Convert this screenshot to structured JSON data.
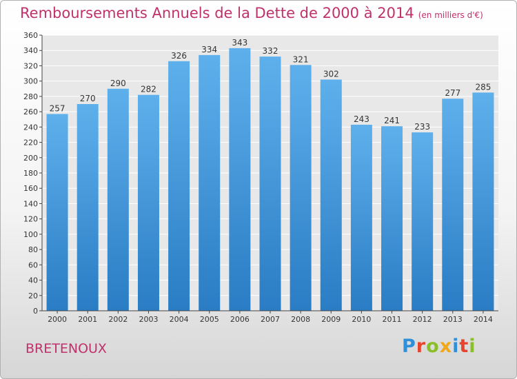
{
  "chart_data": {
    "type": "bar",
    "title": "Remboursements Annuels de la Dette de 2000 à 2014",
    "unit": "(en milliers d'€)",
    "categories": [
      "2000",
      "2001",
      "2002",
      "2003",
      "2004",
      "2005",
      "2006",
      "2007",
      "2008",
      "2009",
      "2010",
      "2011",
      "2012",
      "2013",
      "2014"
    ],
    "values": [
      257,
      270,
      290,
      282,
      326,
      334,
      343,
      332,
      321,
      302,
      243,
      241,
      233,
      277,
      285
    ],
    "ylim": [
      0,
      360
    ],
    "yticks": [
      0,
      20,
      40,
      60,
      80,
      100,
      120,
      140,
      160,
      180,
      200,
      220,
      240,
      260,
      280,
      300,
      320,
      340,
      360
    ],
    "grid": true,
    "bar_color": "#4a9fe0"
  },
  "footer": {
    "place": "BRETENOUX",
    "logo_letters": [
      "P",
      "r",
      "o",
      "x",
      "i",
      "t",
      "i"
    ]
  }
}
